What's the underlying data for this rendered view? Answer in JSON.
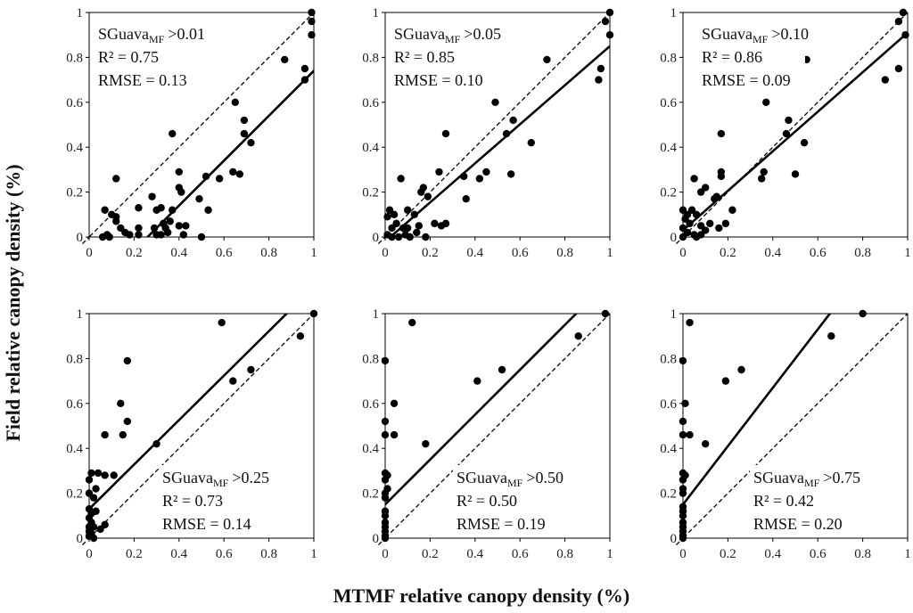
{
  "figure": {
    "ylabel": "Field relative canopy density (%)",
    "xlabel": "MTMF relative canopy density (%)"
  },
  "chart_data": [
    {
      "type": "scatter",
      "annotation": {
        "name": "SGuava",
        "subscript": "MF",
        "threshold": ">0.01",
        "r2": "R² = 0.75",
        "rmse": "RMSE = 0.13"
      },
      "xlim": [
        0,
        1
      ],
      "ylim": [
        0,
        1
      ],
      "xticks": [
        "0",
        "0.2",
        "0.4",
        "0.6",
        "0.8",
        "1"
      ],
      "yticks": [
        "0",
        "0.2",
        "0.4",
        "0.6",
        "0.8",
        "1"
      ],
      "fit_line": {
        "slope": 1.0,
        "intercept": -0.26
      },
      "reference_line": "1:1",
      "points": [
        [
          0.99,
          1.0
        ],
        [
          0.99,
          0.96
        ],
        [
          0.99,
          0.9
        ],
        [
          0.87,
          0.79
        ],
        [
          0.96,
          0.75
        ],
        [
          0.96,
          0.7
        ],
        [
          0.65,
          0.6
        ],
        [
          0.69,
          0.52
        ],
        [
          0.69,
          0.46
        ],
        [
          0.72,
          0.42
        ],
        [
          0.37,
          0.46
        ],
        [
          0.4,
          0.29
        ],
        [
          0.4,
          0.22
        ],
        [
          0.41,
          0.2
        ],
        [
          0.12,
          0.26
        ],
        [
          0.07,
          0.12
        ],
        [
          0.1,
          0.1
        ],
        [
          0.12,
          0.07
        ],
        [
          0.12,
          0.09
        ],
        [
          0.14,
          0.04
        ],
        [
          0.16,
          0.02
        ],
        [
          0.18,
          0.01
        ],
        [
          0.08,
          0.01
        ],
        [
          0.09,
          0.0
        ],
        [
          0.06,
          0.0
        ],
        [
          0.22,
          0.13
        ],
        [
          0.22,
          0.04
        ],
        [
          0.22,
          0.01
        ],
        [
          0.28,
          0.18
        ],
        [
          0.3,
          0.12
        ],
        [
          0.32,
          0.13
        ],
        [
          0.29,
          0.04
        ],
        [
          0.3,
          0.01
        ],
        [
          0.33,
          0.06
        ],
        [
          0.34,
          0.04
        ],
        [
          0.35,
          0.02
        ],
        [
          0.32,
          0.01
        ],
        [
          0.37,
          0.12
        ],
        [
          0.4,
          0.05
        ],
        [
          0.43,
          0.05
        ],
        [
          0.42,
          0.01
        ],
        [
          0.36,
          0.07
        ],
        [
          0.49,
          0.17
        ],
        [
          0.52,
          0.27
        ],
        [
          0.53,
          0.12
        ],
        [
          0.58,
          0.26
        ],
        [
          0.64,
          0.29
        ],
        [
          0.67,
          0.28
        ],
        [
          0.5,
          0.0
        ]
      ]
    },
    {
      "type": "scatter",
      "annotation": {
        "name": "SGuava",
        "subscript": "MF",
        "threshold": ">0.05",
        "r2": "R² = 0.85",
        "rmse": "RMSE = 0.10"
      },
      "xlim": [
        0,
        1
      ],
      "ylim": [
        0,
        1
      ],
      "xticks": [
        "0",
        "0.2",
        "0.4",
        "0.6",
        "0.8",
        "1"
      ],
      "yticks": [
        "0",
        "0.2",
        "0.4",
        "0.6",
        "0.8",
        "1"
      ],
      "fit_line": {
        "slope": 0.87,
        "intercept": -0.02
      },
      "reference_line": "1:1",
      "points": [
        [
          1.0,
          1.0
        ],
        [
          0.98,
          0.96
        ],
        [
          1.0,
          0.9
        ],
        [
          0.72,
          0.79
        ],
        [
          0.96,
          0.75
        ],
        [
          0.95,
          0.7
        ],
        [
          0.49,
          0.6
        ],
        [
          0.57,
          0.52
        ],
        [
          0.54,
          0.46
        ],
        [
          0.65,
          0.42
        ],
        [
          0.27,
          0.46
        ],
        [
          0.45,
          0.29
        ],
        [
          0.35,
          0.27
        ],
        [
          0.36,
          0.17
        ],
        [
          0.42,
          0.26
        ],
        [
          0.56,
          0.28
        ],
        [
          0.24,
          0.29
        ],
        [
          0.07,
          0.26
        ],
        [
          0.17,
          0.22
        ],
        [
          0.16,
          0.2
        ],
        [
          0.19,
          0.18
        ],
        [
          0.02,
          0.12
        ],
        [
          0.04,
          0.1
        ],
        [
          0.1,
          0.12
        ],
        [
          0.13,
          0.1
        ],
        [
          0.01,
          0.09
        ],
        [
          0.05,
          0.06
        ],
        [
          0.03,
          0.04
        ],
        [
          0.08,
          0.04
        ],
        [
          0.01,
          0.01
        ],
        [
          0.03,
          0.0
        ],
        [
          0.06,
          0.0
        ],
        [
          0.09,
          0.01
        ],
        [
          0.11,
          0.0
        ],
        [
          0.14,
          0.02
        ],
        [
          0.18,
          0.0
        ],
        [
          0.1,
          0.04
        ],
        [
          0.15,
          0.05
        ],
        [
          0.22,
          0.06
        ],
        [
          0.25,
          0.05
        ],
        [
          0.27,
          0.06
        ]
      ]
    },
    {
      "type": "scatter",
      "annotation": {
        "name": "SGuava",
        "subscript": "MF",
        "threshold": ">0.10",
        "r2": "R² = 0.86",
        "rmse": "RMSE = 0.09"
      },
      "xlim": [
        0,
        1
      ],
      "ylim": [
        0,
        1
      ],
      "xticks": [
        "0",
        "0.2",
        "0.4",
        "0.6",
        "0.8",
        "1"
      ],
      "yticks": [
        "0",
        "0.2",
        "0.4",
        "0.6",
        "0.8",
        "1"
      ],
      "fit_line": {
        "slope": 0.88,
        "intercept": 0.03
      },
      "reference_line": "1:1",
      "points": [
        [
          0.98,
          1.0
        ],
        [
          0.96,
          0.96
        ],
        [
          0.99,
          0.9
        ],
        [
          0.55,
          0.79
        ],
        [
          0.96,
          0.75
        ],
        [
          0.9,
          0.7
        ],
        [
          0.37,
          0.6
        ],
        [
          0.47,
          0.52
        ],
        [
          0.46,
          0.46
        ],
        [
          0.54,
          0.42
        ],
        [
          0.17,
          0.46
        ],
        [
          0.36,
          0.29
        ],
        [
          0.35,
          0.26
        ],
        [
          0.5,
          0.28
        ],
        [
          0.17,
          0.29
        ],
        [
          0.17,
          0.27
        ],
        [
          0.05,
          0.26
        ],
        [
          0.1,
          0.22
        ],
        [
          0.15,
          0.18
        ],
        [
          0.08,
          0.2
        ],
        [
          0.14,
          0.17
        ],
        [
          0.0,
          0.12
        ],
        [
          0.02,
          0.1
        ],
        [
          0.04,
          0.12
        ],
        [
          0.01,
          0.08
        ],
        [
          0.03,
          0.06
        ],
        [
          0.06,
          0.1
        ],
        [
          0.08,
          0.05
        ],
        [
          0.12,
          0.06
        ],
        [
          0.0,
          0.04
        ],
        [
          0.02,
          0.02
        ],
        [
          0.05,
          0.01
        ],
        [
          0.0,
          0.0
        ],
        [
          0.08,
          0.01
        ],
        [
          0.1,
          0.03
        ],
        [
          0.22,
          0.12
        ],
        [
          0.19,
          0.06
        ],
        [
          0.16,
          0.04
        ],
        [
          0.06,
          0.0
        ]
      ]
    },
    {
      "type": "scatter",
      "annotation": {
        "name": "SGuava",
        "subscript": "MF",
        "threshold": ">0.25",
        "r2": "R² = 0.73",
        "rmse": "RMSE = 0.14"
      },
      "xlim": [
        0,
        1
      ],
      "ylim": [
        0,
        1
      ],
      "xticks": [
        "0",
        "0.2",
        "0.4",
        "0.6",
        "0.8",
        "1"
      ],
      "yticks": [
        "0",
        "0.2",
        "0.4",
        "0.6",
        "0.8",
        "1"
      ],
      "fit_line": {
        "slope": 0.99,
        "intercept": 0.13
      },
      "reference_line": "1:1",
      "points": [
        [
          1.0,
          1.0
        ],
        [
          0.59,
          0.96
        ],
        [
          0.94,
          0.9
        ],
        [
          0.17,
          0.79
        ],
        [
          0.72,
          0.75
        ],
        [
          0.64,
          0.7
        ],
        [
          0.14,
          0.6
        ],
        [
          0.17,
          0.52
        ],
        [
          0.15,
          0.46
        ],
        [
          0.07,
          0.46
        ],
        [
          0.3,
          0.42
        ],
        [
          0.01,
          0.29
        ],
        [
          0.04,
          0.29
        ],
        [
          0.07,
          0.28
        ],
        [
          0.11,
          0.28
        ],
        [
          0.0,
          0.26
        ],
        [
          0.03,
          0.22
        ],
        [
          0.0,
          0.2
        ],
        [
          0.02,
          0.18
        ],
        [
          0.0,
          0.13
        ],
        [
          0.01,
          0.11
        ],
        [
          0.03,
          0.12
        ],
        [
          0.0,
          0.09
        ],
        [
          0.01,
          0.07
        ],
        [
          0.0,
          0.05
        ],
        [
          0.02,
          0.05
        ],
        [
          0.0,
          0.03
        ],
        [
          0.01,
          0.02
        ],
        [
          0.0,
          0.01
        ],
        [
          0.02,
          0.0
        ],
        [
          0.07,
          0.06
        ],
        [
          0.05,
          0.04
        ]
      ]
    },
    {
      "type": "scatter",
      "annotation": {
        "name": "SGuava",
        "subscript": "MF",
        "threshold": ">0.50",
        "r2": "R² = 0.50",
        "rmse": "RMSE = 0.19"
      },
      "xlim": [
        0,
        1
      ],
      "ylim": [
        0,
        1
      ],
      "xticks": [
        "0",
        "0.2",
        "0.4",
        "0.6",
        "0.8",
        "1"
      ],
      "yticks": [
        "0",
        "0.2",
        "0.4",
        "0.6",
        "0.8",
        "1"
      ],
      "fit_line": {
        "slope": 1.0,
        "intercept": 0.15
      },
      "reference_line": "1:1",
      "points": [
        [
          0.98,
          1.0
        ],
        [
          0.12,
          0.96
        ],
        [
          0.86,
          0.9
        ],
        [
          0.0,
          0.79
        ],
        [
          0.52,
          0.75
        ],
        [
          0.41,
          0.7
        ],
        [
          0.04,
          0.6
        ],
        [
          0.0,
          0.52
        ],
        [
          0.0,
          0.46
        ],
        [
          0.04,
          0.46
        ],
        [
          0.18,
          0.42
        ],
        [
          0.0,
          0.29
        ],
        [
          0.01,
          0.28
        ],
        [
          0.0,
          0.26
        ],
        [
          0.01,
          0.22
        ],
        [
          0.0,
          0.2
        ],
        [
          0.0,
          0.18
        ],
        [
          0.0,
          0.12
        ],
        [
          0.0,
          0.1
        ],
        [
          0.0,
          0.07
        ],
        [
          0.0,
          0.05
        ],
        [
          0.0,
          0.03
        ],
        [
          0.0,
          0.01
        ],
        [
          0.0,
          0.0
        ]
      ]
    },
    {
      "type": "scatter",
      "annotation": {
        "name": "SGuava",
        "subscript": "MF",
        "threshold": ">0.75",
        "r2": "R² = 0.42",
        "rmse": "RMSE = 0.20"
      },
      "xlim": [
        0,
        1
      ],
      "ylim": [
        0,
        1
      ],
      "xticks": [
        "0",
        "0.2",
        "0.4",
        "0.6",
        "0.8",
        "1"
      ],
      "yticks": [
        "0",
        "0.2",
        "0.4",
        "0.6",
        "0.8",
        "1"
      ],
      "fit_line": {
        "slope": 1.3,
        "intercept": 0.15
      },
      "reference_line": "1:1",
      "points": [
        [
          0.8,
          1.0
        ],
        [
          0.03,
          0.96
        ],
        [
          0.66,
          0.9
        ],
        [
          0.0,
          0.79
        ],
        [
          0.26,
          0.75
        ],
        [
          0.19,
          0.7
        ],
        [
          0.01,
          0.6
        ],
        [
          0.0,
          0.52
        ],
        [
          0.0,
          0.46
        ],
        [
          0.03,
          0.46
        ],
        [
          0.1,
          0.42
        ],
        [
          0.0,
          0.29
        ],
        [
          0.01,
          0.28
        ],
        [
          0.0,
          0.26
        ],
        [
          0.0,
          0.22
        ],
        [
          0.0,
          0.2
        ],
        [
          0.0,
          0.14
        ],
        [
          0.0,
          0.12
        ],
        [
          0.0,
          0.1
        ],
        [
          0.0,
          0.07
        ],
        [
          0.0,
          0.05
        ],
        [
          0.0,
          0.03
        ],
        [
          0.0,
          0.01
        ],
        [
          0.0,
          0.0
        ]
      ]
    }
  ]
}
